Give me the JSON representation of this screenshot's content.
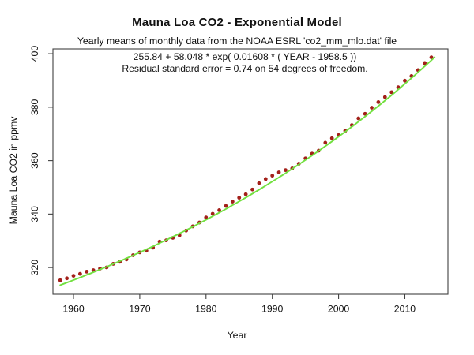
{
  "figure": {
    "title": "Mauna Loa CO2 - Exponential Model",
    "subtitle": "Yearly means of monthly data from the NOAA ESRL 'co2_mm_mlo.dat' file",
    "annotation_line1": "255.84 + 58.048 * exp( 0.01608 * ( YEAR - 1958.5 ))",
    "annotation_line2": "Residual standard error = 0.74 on 54 degrees of freedom."
  },
  "chart_data": {
    "type": "scatter",
    "title": "Mauna Loa CO2 - Exponential Model",
    "subtitle": "Yearly means of monthly data from the NOAA ESRL 'co2_mm_mlo.dat' file",
    "xlabel": "Year",
    "ylabel": "Mauna Loa CO2 in ppmv",
    "xlim": [
      1956.9,
      2016.5
    ],
    "ylim": [
      310.0,
      401.8
    ],
    "x_ticks": [
      1960,
      1970,
      1980,
      1990,
      2000,
      2010
    ],
    "y_ticks": [
      320,
      340,
      360,
      380,
      400
    ],
    "grid": false,
    "legend": "none",
    "colors": {
      "points": "#a3201a",
      "fit_line": "#72e040",
      "frame": "#404040",
      "text": "#111111",
      "background": "#ffffff"
    },
    "series": [
      {
        "name": "yearly-mean-co2-observed",
        "render": "points",
        "x": [
          1958,
          1959,
          1960,
          1961,
          1962,
          1963,
          1964,
          1965,
          1966,
          1967,
          1968,
          1969,
          1970,
          1971,
          1972,
          1973,
          1974,
          1975,
          1976,
          1977,
          1978,
          1979,
          1980,
          1981,
          1982,
          1983,
          1984,
          1985,
          1986,
          1987,
          1988,
          1989,
          1990,
          1991,
          1992,
          1993,
          1994,
          1995,
          1996,
          1997,
          1998,
          1999,
          2000,
          2001,
          2002,
          2003,
          2004,
          2005,
          2006,
          2007,
          2008,
          2009,
          2010,
          2011,
          2012,
          2013,
          2014
        ],
        "y": [
          315.24,
          315.97,
          316.91,
          317.64,
          318.45,
          318.99,
          319.62,
          320.04,
          321.38,
          322.16,
          323.04,
          324.62,
          325.68,
          326.32,
          327.45,
          329.68,
          330.18,
          331.11,
          332.04,
          333.83,
          335.4,
          336.84,
          338.75,
          340.11,
          341.45,
          343.05,
          344.65,
          346.12,
          347.42,
          349.19,
          351.57,
          353.12,
          354.39,
          355.61,
          356.45,
          357.1,
          358.83,
          360.82,
          362.61,
          363.73,
          366.7,
          368.38,
          369.55,
          371.14,
          373.28,
          375.8,
          377.52,
          379.8,
          381.9,
          383.79,
          385.6,
          387.43,
          389.9,
          391.65,
          393.85,
          396.52,
          398.65
        ]
      },
      {
        "name": "exponential-fit",
        "render": "line",
        "fit": {
          "base": 255.84,
          "scale": 58.048,
          "rate": 0.01608,
          "origin": 1958.5,
          "x_start": 1958,
          "x_end": 2014.5
        },
        "equation": "255.84 + 58.048 * exp( 0.01608 * ( YEAR - 1958.5 ))"
      }
    ]
  }
}
